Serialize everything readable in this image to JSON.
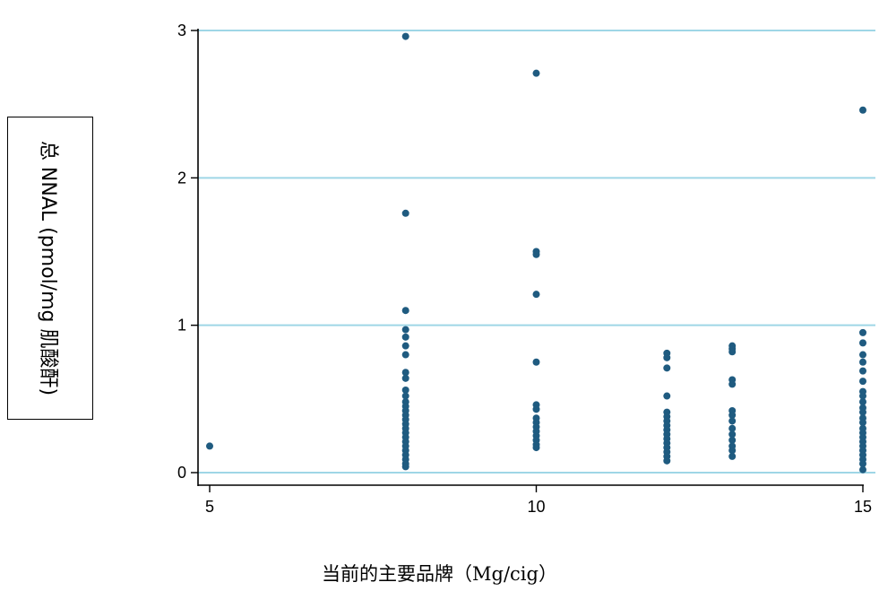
{
  "chart_data": {
    "type": "scatter",
    "xlabel": "当前的主要品牌（Mg/cig）",
    "ylabel": "总 NNAL (pmol/mg 肌酸酐)",
    "xlim": [
      5,
      15
    ],
    "ylim": [
      0,
      3
    ],
    "xticks": [
      5,
      10,
      15
    ],
    "yticks": [
      0,
      1,
      2,
      3
    ],
    "grid": "horizontal",
    "colors": {
      "points": "#1f5b80",
      "gridlines": "#9fd6e6",
      "axes": "#000000"
    },
    "series": [
      {
        "points": [
          [
            5,
            0.18
          ],
          [
            8,
            2.96
          ],
          [
            8,
            1.76
          ],
          [
            8,
            1.1
          ],
          [
            8,
            0.97
          ],
          [
            8,
            0.92
          ],
          [
            8,
            0.86
          ],
          [
            8,
            0.8
          ],
          [
            8,
            0.68
          ],
          [
            8,
            0.64
          ],
          [
            8,
            0.56
          ],
          [
            8,
            0.52
          ],
          [
            8,
            0.48
          ],
          [
            8,
            0.45
          ],
          [
            8,
            0.42
          ],
          [
            8,
            0.39
          ],
          [
            8,
            0.36
          ],
          [
            8,
            0.33
          ],
          [
            8,
            0.3
          ],
          [
            8,
            0.27
          ],
          [
            8,
            0.24
          ],
          [
            8,
            0.21
          ],
          [
            8,
            0.18
          ],
          [
            8,
            0.15
          ],
          [
            8,
            0.12
          ],
          [
            8,
            0.09
          ],
          [
            8,
            0.06
          ],
          [
            8,
            0.04
          ],
          [
            10,
            2.71
          ],
          [
            10,
            1.5
          ],
          [
            10,
            1.48
          ],
          [
            10,
            1.21
          ],
          [
            10,
            0.75
          ],
          [
            10,
            0.46
          ],
          [
            10,
            0.43
          ],
          [
            10,
            0.37
          ],
          [
            10,
            0.34
          ],
          [
            10,
            0.31
          ],
          [
            10,
            0.28
          ],
          [
            10,
            0.25
          ],
          [
            10,
            0.22
          ],
          [
            10,
            0.19
          ],
          [
            10,
            0.17
          ],
          [
            12,
            0.81
          ],
          [
            12,
            0.78
          ],
          [
            12,
            0.71
          ],
          [
            12,
            0.52
          ],
          [
            12,
            0.41
          ],
          [
            12,
            0.38
          ],
          [
            12,
            0.35
          ],
          [
            12,
            0.32
          ],
          [
            12,
            0.29
          ],
          [
            12,
            0.26
          ],
          [
            12,
            0.23
          ],
          [
            12,
            0.2
          ],
          [
            12,
            0.17
          ],
          [
            12,
            0.14
          ],
          [
            12,
            0.11
          ],
          [
            12,
            0.08
          ],
          [
            13,
            0.86
          ],
          [
            13,
            0.84
          ],
          [
            13,
            0.82
          ],
          [
            13,
            0.63
          ],
          [
            13,
            0.6
          ],
          [
            13,
            0.42
          ],
          [
            13,
            0.39
          ],
          [
            13,
            0.35
          ],
          [
            13,
            0.3
          ],
          [
            13,
            0.26
          ],
          [
            13,
            0.22
          ],
          [
            13,
            0.18
          ],
          [
            13,
            0.15
          ],
          [
            13,
            0.11
          ],
          [
            15,
            2.46
          ],
          [
            15,
            0.95
          ],
          [
            15,
            0.88
          ],
          [
            15,
            0.8
          ],
          [
            15,
            0.75
          ],
          [
            15,
            0.69
          ],
          [
            15,
            0.62
          ],
          [
            15,
            0.55
          ],
          [
            15,
            0.52
          ],
          [
            15,
            0.48
          ],
          [
            15,
            0.44
          ],
          [
            15,
            0.41
          ],
          [
            15,
            0.37
          ],
          [
            15,
            0.34
          ],
          [
            15,
            0.3
          ],
          [
            15,
            0.27
          ],
          [
            15,
            0.24
          ],
          [
            15,
            0.21
          ],
          [
            15,
            0.18
          ],
          [
            15,
            0.15
          ],
          [
            15,
            0.12
          ],
          [
            15,
            0.09
          ],
          [
            15,
            0.06
          ],
          [
            15,
            0.02
          ]
        ]
      }
    ]
  }
}
